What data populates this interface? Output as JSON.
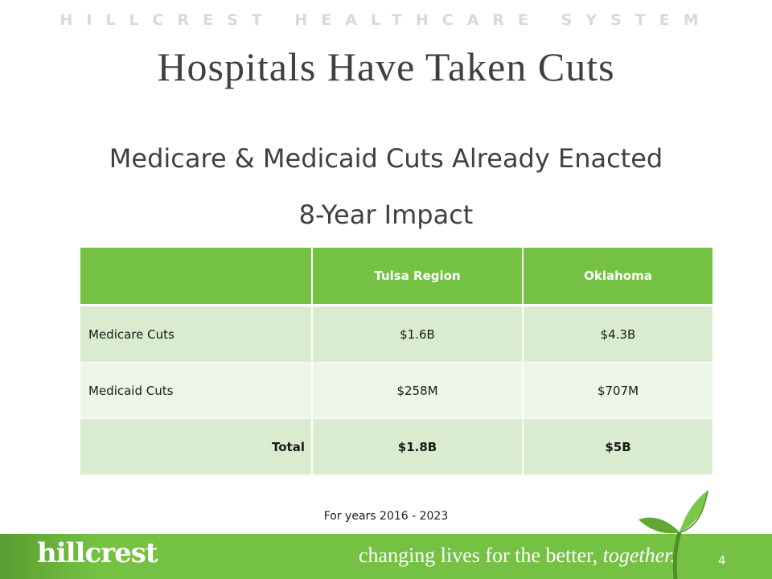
{
  "header": {
    "org_name": "HILLCREST HEALTHCARE SYSTEM",
    "title": "Hospitals Have Taken Cuts"
  },
  "subtitles": {
    "line1": "Medicare & Medicaid Cuts Already Enacted",
    "line2": "8-Year Impact"
  },
  "table": {
    "columns": [
      "",
      "Tulsa Region",
      "Oklahoma"
    ],
    "rows": [
      {
        "label": "Medicare Cuts",
        "tulsa": "$1.6B",
        "oklahoma": "$4.3B"
      },
      {
        "label": "Medicaid Cuts",
        "tulsa": "$258M",
        "oklahoma": "$707M"
      },
      {
        "label": "Total",
        "tulsa": "$1.8B",
        "oklahoma": "$5B"
      }
    ]
  },
  "footnote": "For years 2016 - 2023",
  "footer": {
    "logo_text": "hillcrest",
    "tagline_main": "changing lives for the better,",
    "tagline_em": "together.",
    "page_number": "4",
    "accent_color": "#74c143",
    "icons": [
      "leaf-sprout-icon"
    ]
  }
}
